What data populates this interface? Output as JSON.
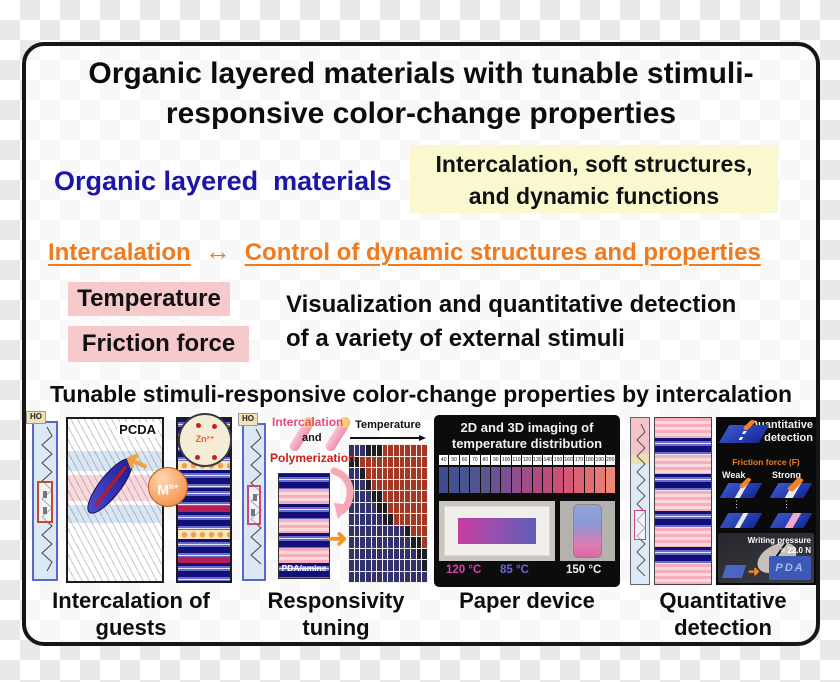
{
  "title": {
    "line1": "Organic layered materials with tunable stimuli-",
    "line2": "responsive color-change properties"
  },
  "intro": {
    "materials_label": "Organic layered  materials",
    "highlight_box": {
      "line1": "Intercalation, soft structures,",
      "line2": "and dynamic functions"
    }
  },
  "relation": {
    "left": "Intercalation",
    "arrow": "↔",
    "right": "Control of dynamic structures and properties"
  },
  "stimuli": {
    "box1": "Temperature",
    "box2": "Friction force",
    "desc1": "Visualization and quantitative detection",
    "desc2": "of a variety of external stimuli"
  },
  "section_heading": "Tunable stimuli-responsive color-change properties by intercalation",
  "molecule": {
    "ho_label": "HO"
  },
  "panel1": {
    "pcda_label": "PCDA",
    "metal_m": "M",
    "metal_sup": "n+",
    "zn_label": "Zn²⁺"
  },
  "panel2": {
    "intercalation_label": "Intercalation",
    "and_label": "and",
    "polymerization_label": "Polymerization",
    "pda_amine_label": "PDA/amine",
    "temperature_label": "Temperature",
    "heatmap": {
      "cols": 14,
      "rows": [
        {
          "blue": 3,
          "dark": 6
        },
        {
          "blue": 0,
          "dark": 2
        },
        {
          "blue": 2,
          "dark": 3
        },
        {
          "blue": 3,
          "dark": 4
        },
        {
          "blue": 4,
          "dark": 6
        },
        {
          "blue": 5,
          "dark": 7
        },
        {
          "blue": 6,
          "dark": 8
        },
        {
          "blue": 10,
          "dark": 11
        },
        {
          "blue": 11,
          "dark": 13
        },
        {
          "blue": 12,
          "dark": 14
        },
        {
          "blue": 13,
          "dark": 14
        },
        {
          "blue": 14,
          "dark": 14
        }
      ]
    }
  },
  "panel3": {
    "heading1": "2D and 3D imaging of",
    "heading2": "temperature distribution",
    "scale": {
      "ticks": [
        "40",
        "50",
        "60",
        "70",
        "80",
        "90",
        "100",
        "110",
        "120",
        "130",
        "140",
        "150",
        "160",
        "170",
        "180",
        "190",
        "200"
      ],
      "colors": [
        "#3f4c8e",
        "#44508f",
        "#495390",
        "#515490",
        "#5d5492",
        "#6b5293",
        "#7b5192",
        "#8e4f8e",
        "#a04c89",
        "#b04a83",
        "#bf4a7d",
        "#cb4f79",
        "#d55876",
        "#dc6273",
        "#e26d72",
        "#e77a72",
        "#eb8875"
      ]
    },
    "temp_left": "120 °C",
    "temp_mid": "85 °C",
    "temp_right": "150 °C"
  },
  "panel4": {
    "heading1": "Quantitative",
    "heading2": "detection",
    "friction_label": "Friction force (F)",
    "weak_label": "Weak",
    "strong_label": "Strong",
    "dots": "⋮",
    "pressure_line1": "Writing pressure",
    "pressure_line2": "= 22.0 N",
    "written_text": "PDA"
  },
  "captions": {
    "c1": [
      "Intercalation of",
      "guests"
    ],
    "c2": [
      "Responsivity",
      "tuning"
    ],
    "c3": [
      "Paper device",
      ""
    ],
    "c4": [
      "Quantitative",
      "detection"
    ]
  },
  "bands": {
    "p1_column": [
      "navy",
      "crimson",
      "navy",
      "guest",
      "navy",
      "navy",
      "crimson",
      "navy",
      "guest",
      "navy",
      "crimson",
      "navy"
    ],
    "p2_column": [
      "navy",
      "pink",
      "navy",
      "pink",
      "navy",
      "pink",
      "navy"
    ],
    "p4_column": [
      "pink",
      "navy",
      "pink",
      "navy",
      "pink",
      "navy",
      "pink",
      "navy",
      "pink"
    ]
  },
  "icons": {
    "double_arrow": "↔",
    "right_arrow": "➜",
    "bent_arrow": "➜"
  },
  "colors": {
    "accent_orange": "#f17a1c",
    "heading_blue": "#1b16a8",
    "highlight_yellow": "#f9f8cf",
    "stimulus_pink": "#f6c9cb",
    "heatmap_blue": "#31316b",
    "heatmap_dark": "#1d1d24",
    "heatmap_red": "#a23723",
    "navy_band": "#101078",
    "crimson_band": "#b51d56",
    "friction_orange": "#f07d1c",
    "temp_magenta": "#e23cb4",
    "temp_blue": "#6a66e0"
  }
}
